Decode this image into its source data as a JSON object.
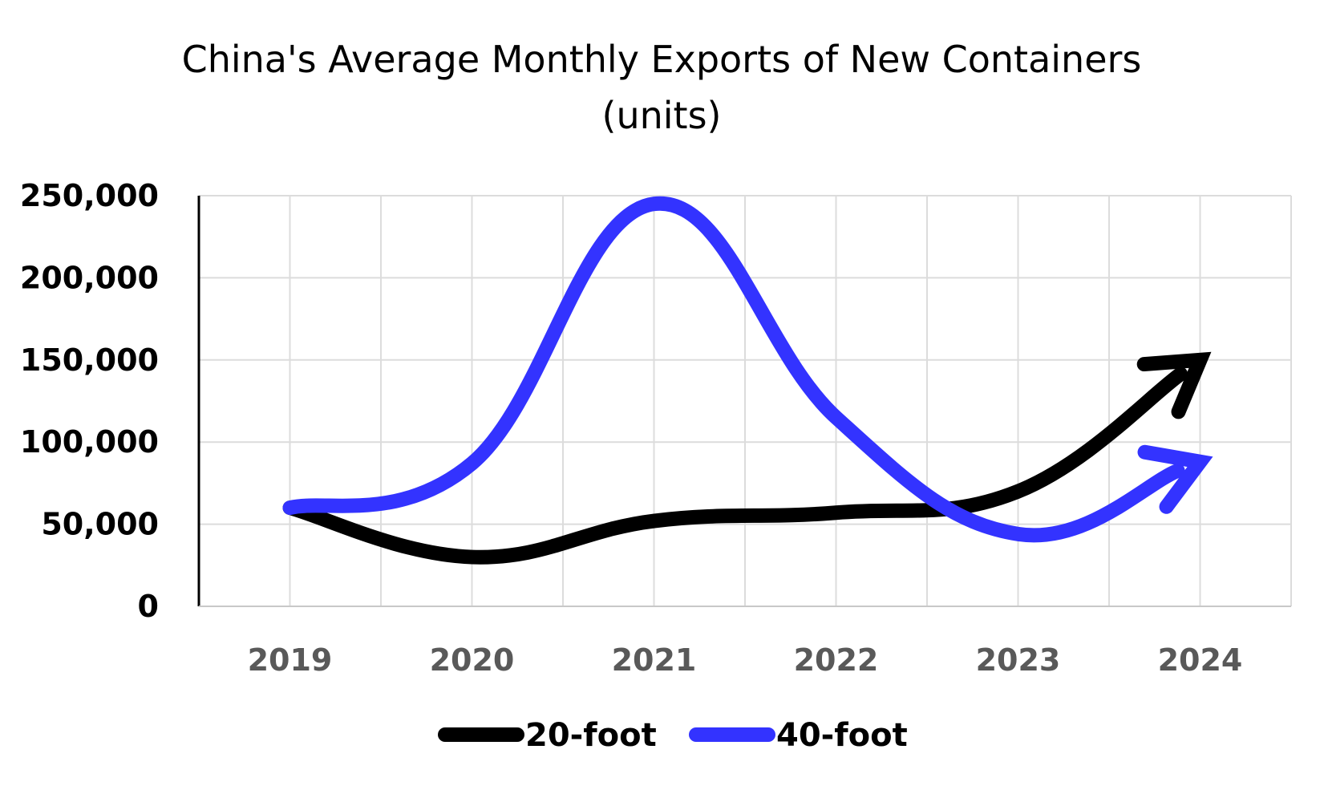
{
  "chart_data": {
    "type": "line",
    "title_line1": "China's Average Monthly Exports of New Containers",
    "title_line2": "(units)",
    "xlabel": "",
    "ylabel": "",
    "categories": [
      "2019",
      "2020",
      "2021",
      "2022",
      "2023",
      "2024"
    ],
    "ylim": [
      0,
      250000
    ],
    "y_ticks": [
      0,
      50000,
      100000,
      150000,
      200000,
      250000
    ],
    "y_tick_labels": [
      "0",
      "50,000",
      "100,000",
      "150,000",
      "200,000",
      "250,000"
    ],
    "grid": true,
    "legend_position": "bottom",
    "series": [
      {
        "name": "20-foot",
        "color": "#000000",
        "values": [
          60000,
          30000,
          52000,
          57000,
          70000,
          150000
        ],
        "end_marker": "arrow"
      },
      {
        "name": "40-foot",
        "color": "#3333ff",
        "values": [
          60000,
          87000,
          245000,
          115000,
          44000,
          88000
        ],
        "end_marker": "arrow"
      }
    ]
  }
}
